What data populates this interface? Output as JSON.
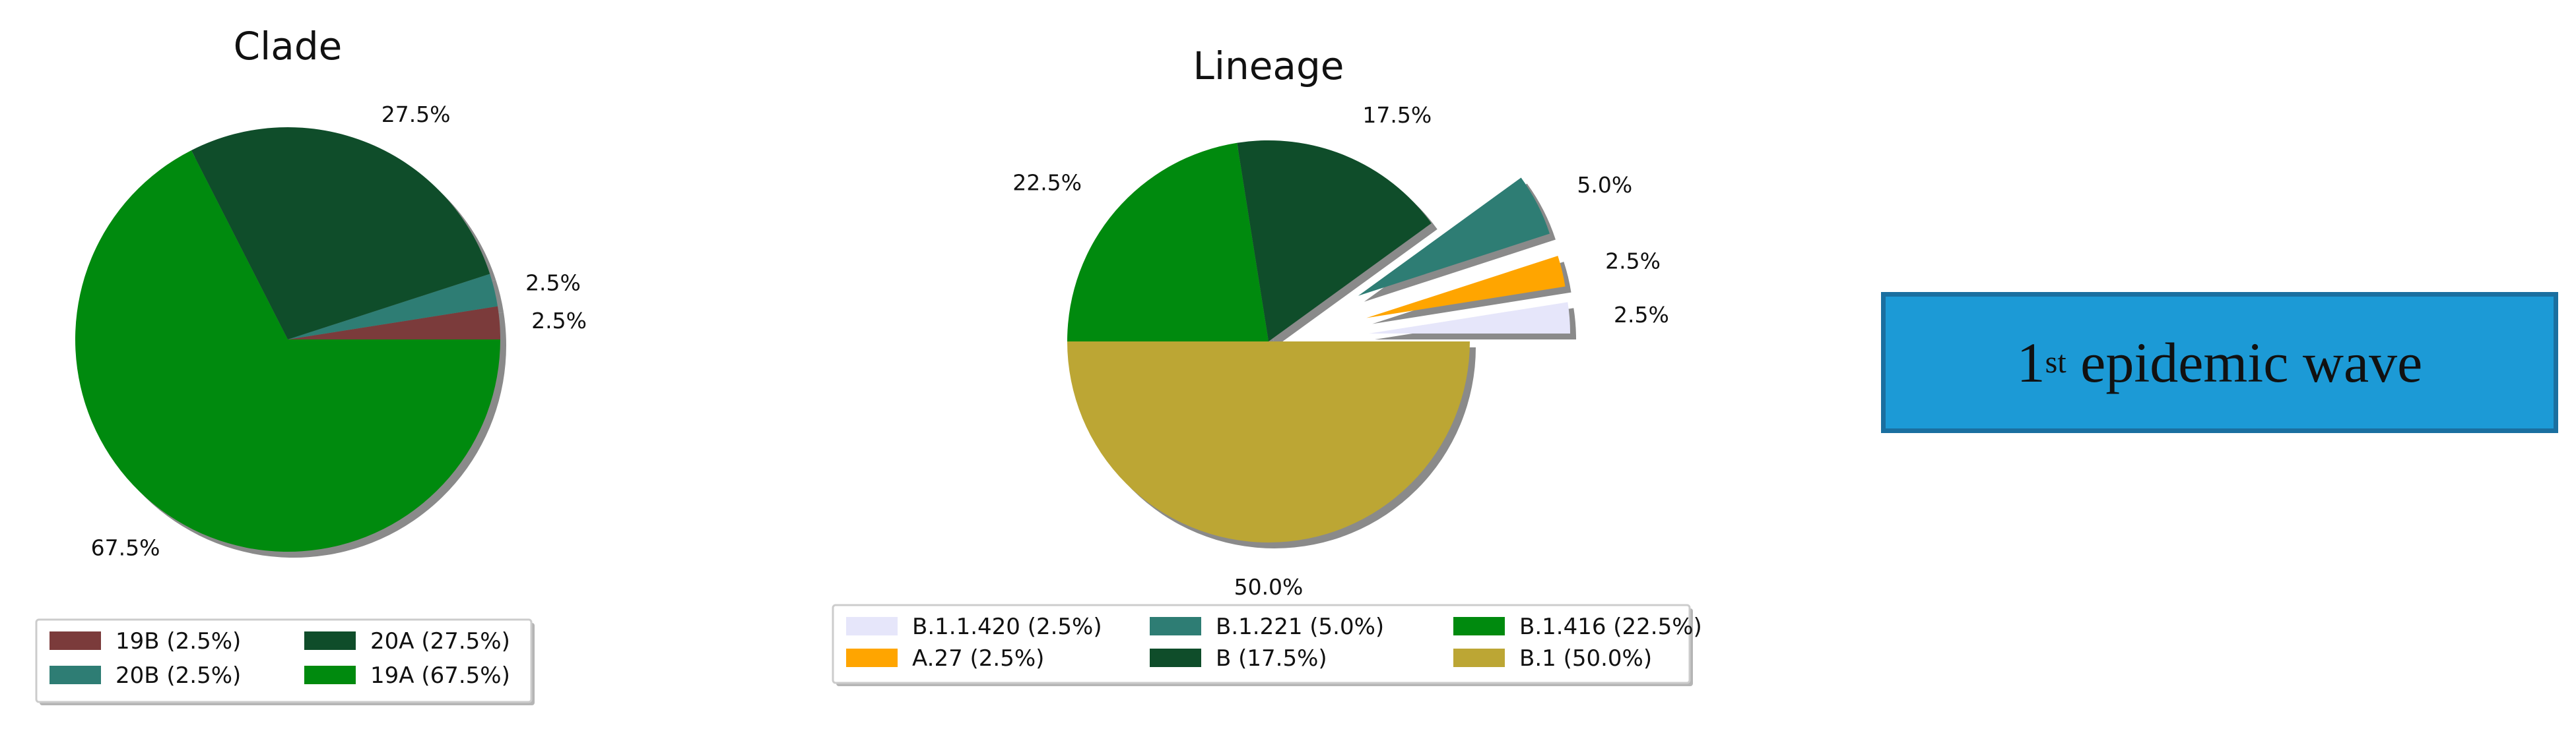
{
  "chart_data": [
    {
      "type": "pie",
      "title": "Clade",
      "slices": [
        {
          "label": "19B",
          "value": 2.5,
          "pct_label": "2.5%",
          "color": "#7b3b3b"
        },
        {
          "label": "20B",
          "value": 2.5,
          "pct_label": "2.5%",
          "color": "#2e7d74"
        },
        {
          "label": "20A",
          "value": 27.5,
          "pct_label": "27.5%",
          "color": "#0f4d2a"
        },
        {
          "label": "19A",
          "value": 67.5,
          "pct_label": "67.5%",
          "color": "#008a0e"
        }
      ],
      "legend": [
        {
          "text": "19B (2.5%)",
          "color": "#7b3b3b"
        },
        {
          "text": "20A (27.5%)",
          "color": "#0f4d2a"
        },
        {
          "text": "20B (2.5%)",
          "color": "#2e7d74"
        },
        {
          "text": "19A (67.5%)",
          "color": "#008a0e"
        }
      ],
      "legend_placement": "bottom",
      "start_angle": 0,
      "direction": "counterclockwise",
      "shadow": true
    },
    {
      "type": "pie",
      "title": "Lineage",
      "slices": [
        {
          "label": "B.1.1.420",
          "value": 2.5,
          "pct_label": "2.5%",
          "color": "#e6e6fa",
          "exploded": true
        },
        {
          "label": "A.27",
          "value": 2.5,
          "pct_label": "2.5%",
          "color": "#ffa500",
          "exploded": true
        },
        {
          "label": "B.1.221",
          "value": 5.0,
          "pct_label": "5.0%",
          "color": "#2e7d74",
          "exploded": true
        },
        {
          "label": "B",
          "value": 17.5,
          "pct_label": "17.5%",
          "color": "#0f4d2a",
          "exploded": false
        },
        {
          "label": "B.1.416",
          "value": 22.5,
          "pct_label": "22.5%",
          "color": "#008a0e",
          "exploded": false
        },
        {
          "label": "B.1",
          "value": 50.0,
          "pct_label": "50.0%",
          "color": "#bca634",
          "exploded": false
        }
      ],
      "legend": [
        {
          "text": "B.1.1.420 (2.5%)",
          "color": "#e6e6fa"
        },
        {
          "text": "B.1.221 (5.0%)",
          "color": "#2e7d74"
        },
        {
          "text": "B.1.416 (22.5%)",
          "color": "#008a0e"
        },
        {
          "text": "A.27 (2.5%)",
          "color": "#ffa500"
        },
        {
          "text": "B (17.5%)",
          "color": "#0f4d2a"
        },
        {
          "text": "B.1 (50.0%)",
          "color": "#bca634"
        }
      ],
      "legend_placement": "bottom",
      "start_angle": 0,
      "direction": "counterclockwise",
      "shadow": true
    }
  ],
  "wave_label": {
    "number": "1",
    "superscript": "st",
    "text": "epidemic wave"
  }
}
